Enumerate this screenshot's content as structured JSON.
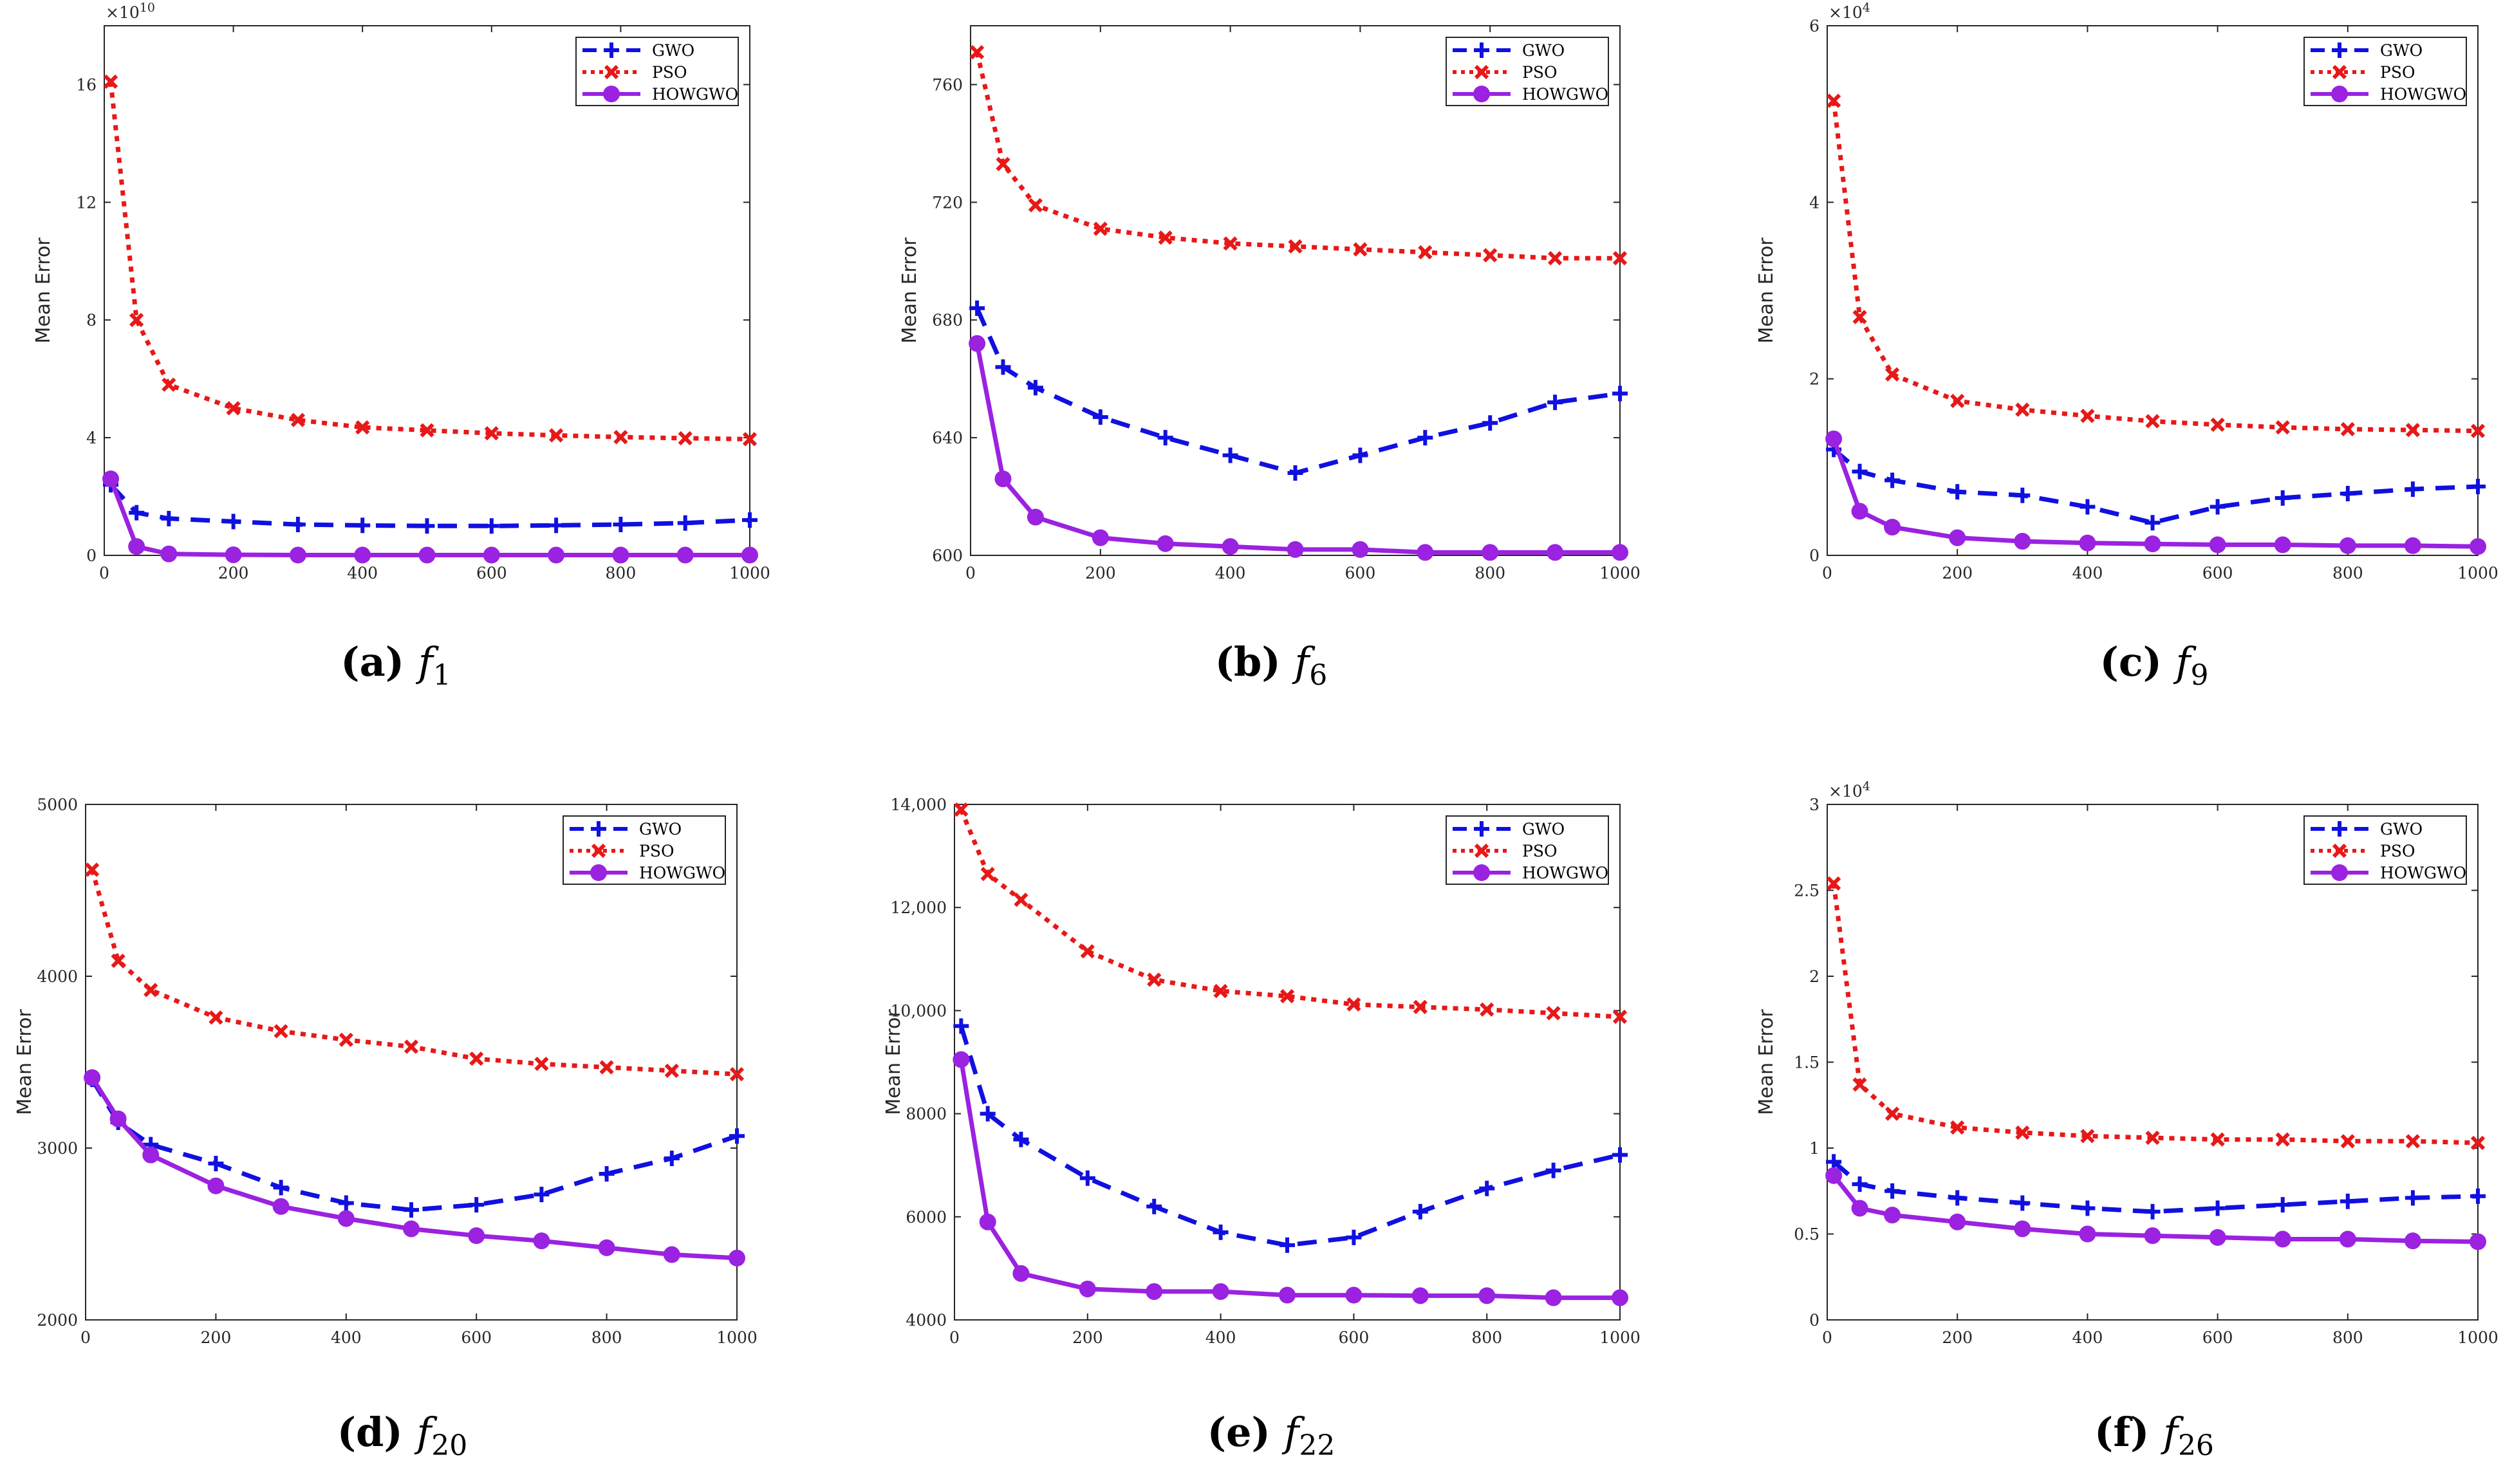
{
  "legend": [
    "GWO",
    "PSO",
    "HOWGWO"
  ],
  "series_colors": {
    "GWO": "#1010e0",
    "PSO": "#e81818",
    "HOWGWO": "#9a22e0"
  },
  "chart_data": [
    {
      "type": "line",
      "caption_letter": "(a)",
      "caption_fn": "f",
      "caption_sub": "1",
      "xlabel": "",
      "ylabel": "Mean Error",
      "xlim": [
        0,
        1000
      ],
      "ylim": [
        0,
        18
      ],
      "x_ticks": [
        0,
        200,
        400,
        600,
        800,
        1000
      ],
      "y_ticks": [
        0,
        4,
        8,
        12,
        16
      ],
      "y_tick_labels": [
        "0",
        "4",
        "8",
        "12",
        "16"
      ],
      "multiplier_base": "×10",
      "multiplier_exp": "10",
      "x": [
        10,
        50,
        100,
        200,
        300,
        400,
        500,
        600,
        700,
        800,
        900,
        1000
      ],
      "series": [
        {
          "name": "GWO",
          "values": [
            2.4,
            1.45,
            1.25,
            1.15,
            1.05,
            1.02,
            1.0,
            1.0,
            1.02,
            1.05,
            1.1,
            1.2
          ]
        },
        {
          "name": "PSO",
          "values": [
            16.1,
            8.0,
            5.8,
            5.0,
            4.6,
            4.35,
            4.25,
            4.15,
            4.08,
            4.02,
            3.98,
            3.95
          ]
        },
        {
          "name": "HOWGWO",
          "values": [
            2.6,
            0.3,
            0.05,
            0.02,
            0.01,
            0.01,
            0.01,
            0.01,
            0.01,
            0.01,
            0.01,
            0.01
          ]
        }
      ]
    },
    {
      "type": "line",
      "caption_letter": "(b)",
      "caption_fn": "f",
      "caption_sub": "6",
      "xlabel": "",
      "ylabel": "Mean Error",
      "xlim": [
        0,
        1000
      ],
      "ylim": [
        600,
        780
      ],
      "x_ticks": [
        0,
        200,
        400,
        600,
        800,
        1000
      ],
      "y_ticks": [
        600,
        640,
        680,
        720,
        760
      ],
      "y_tick_labels": [
        "600",
        "640",
        "680",
        "720",
        "760"
      ],
      "multiplier_base": "",
      "multiplier_exp": "",
      "x": [
        10,
        50,
        100,
        200,
        300,
        400,
        500,
        600,
        700,
        800,
        900,
        1000
      ],
      "series": [
        {
          "name": "GWO",
          "values": [
            684,
            664,
            657,
            647,
            640,
            634,
            628,
            634,
            640,
            645,
            652,
            655
          ]
        },
        {
          "name": "PSO",
          "values": [
            771,
            733,
            719,
            711,
            708,
            706,
            705,
            704,
            703,
            702,
            701,
            701
          ]
        },
        {
          "name": "HOWGWO",
          "values": [
            672,
            626,
            613,
            606,
            604,
            603,
            602,
            602,
            601,
            601,
            601,
            601
          ]
        }
      ]
    },
    {
      "type": "line",
      "caption_letter": "(c)",
      "caption_fn": "f",
      "caption_sub": "9",
      "xlabel": "",
      "ylabel": "Mean Error",
      "xlim": [
        0,
        1000
      ],
      "ylim": [
        0,
        6
      ],
      "x_ticks": [
        0,
        200,
        400,
        600,
        800,
        1000
      ],
      "y_ticks": [
        0,
        2,
        4,
        6
      ],
      "y_tick_labels": [
        "0",
        "2",
        "4",
        "6"
      ],
      "multiplier_base": "×10",
      "multiplier_exp": "4",
      "x": [
        10,
        50,
        100,
        200,
        300,
        400,
        500,
        600,
        700,
        800,
        900,
        1000
      ],
      "series": [
        {
          "name": "GWO",
          "values": [
            1.2,
            0.95,
            0.85,
            0.72,
            0.68,
            0.55,
            0.37,
            0.55,
            0.65,
            0.7,
            0.75,
            0.78
          ]
        },
        {
          "name": "PSO",
          "values": [
            5.15,
            2.7,
            2.05,
            1.75,
            1.65,
            1.58,
            1.52,
            1.48,
            1.45,
            1.43,
            1.42,
            1.41
          ]
        },
        {
          "name": "HOWGWO",
          "values": [
            1.32,
            0.5,
            0.32,
            0.2,
            0.16,
            0.14,
            0.13,
            0.12,
            0.12,
            0.11,
            0.11,
            0.1
          ]
        }
      ]
    },
    {
      "type": "line",
      "caption_letter": "(d)",
      "caption_fn": "f",
      "caption_sub": "20",
      "xlabel": "",
      "ylabel": "Mean Error",
      "xlim": [
        0,
        1000
      ],
      "ylim": [
        2000,
        5000
      ],
      "x_ticks": [
        0,
        200,
        400,
        600,
        800,
        1000
      ],
      "y_ticks": [
        2000,
        3000,
        4000,
        5000
      ],
      "y_tick_labels": [
        "2000",
        "3000",
        "4000",
        "5000"
      ],
      "multiplier_base": "",
      "multiplier_exp": "",
      "x": [
        10,
        50,
        100,
        200,
        300,
        400,
        500,
        600,
        700,
        800,
        900,
        1000
      ],
      "series": [
        {
          "name": "GWO",
          "values": [
            3400,
            3150,
            3020,
            2910,
            2770,
            2680,
            2640,
            2670,
            2730,
            2850,
            2940,
            3070
          ]
        },
        {
          "name": "PSO",
          "values": [
            4620,
            4090,
            3920,
            3760,
            3680,
            3630,
            3590,
            3520,
            3490,
            3470,
            3450,
            3430
          ]
        },
        {
          "name": "HOWGWO",
          "values": [
            3410,
            3170,
            2960,
            2780,
            2660,
            2590,
            2530,
            2490,
            2460,
            2420,
            2380,
            2360
          ]
        }
      ]
    },
    {
      "type": "line",
      "caption_letter": "(e)",
      "caption_fn": "f",
      "caption_sub": "22",
      "xlabel": "",
      "ylabel": "Mean Error",
      "xlim": [
        0,
        1000
      ],
      "ylim": [
        4000,
        14000
      ],
      "x_ticks": [
        0,
        200,
        400,
        600,
        800,
        1000
      ],
      "y_ticks": [
        4000,
        6000,
        8000,
        10000,
        12000,
        14000
      ],
      "y_tick_labels": [
        "4000",
        "6000",
        "8000",
        "10,000",
        "12,000",
        "14,000"
      ],
      "multiplier_base": "",
      "multiplier_exp": "",
      "x": [
        10,
        50,
        100,
        200,
        300,
        400,
        500,
        600,
        700,
        800,
        900,
        1000
      ],
      "series": [
        {
          "name": "GWO",
          "values": [
            9700,
            8000,
            7500,
            6750,
            6200,
            5700,
            5450,
            5600,
            6100,
            6550,
            6900,
            7200
          ]
        },
        {
          "name": "PSO",
          "values": [
            13900,
            12650,
            12150,
            11150,
            10600,
            10380,
            10280,
            10120,
            10070,
            10020,
            9950,
            9880
          ]
        },
        {
          "name": "HOWGWO",
          "values": [
            9050,
            5900,
            4900,
            4600,
            4550,
            4550,
            4480,
            4480,
            4470,
            4470,
            4430,
            4430
          ]
        }
      ]
    },
    {
      "type": "line",
      "caption_letter": "(f)",
      "caption_fn": "f",
      "caption_sub": "26",
      "xlabel": "",
      "ylabel": "Mean Error",
      "xlim": [
        0,
        1000
      ],
      "ylim": [
        0,
        3
      ],
      "x_ticks": [
        0,
        200,
        400,
        600,
        800,
        1000
      ],
      "y_ticks": [
        0,
        0.5,
        1,
        1.5,
        2,
        2.5,
        3
      ],
      "y_tick_labels": [
        "0",
        "0.5",
        "1",
        "1.5",
        "2",
        "2.5",
        "3"
      ],
      "multiplier_base": "×10",
      "multiplier_exp": "4",
      "x": [
        10,
        50,
        100,
        200,
        300,
        400,
        500,
        600,
        700,
        800,
        900,
        1000
      ],
      "series": [
        {
          "name": "GWO",
          "values": [
            0.92,
            0.79,
            0.75,
            0.71,
            0.68,
            0.65,
            0.63,
            0.65,
            0.67,
            0.69,
            0.71,
            0.72
          ]
        },
        {
          "name": "PSO",
          "values": [
            2.54,
            1.37,
            1.2,
            1.12,
            1.09,
            1.07,
            1.06,
            1.05,
            1.05,
            1.04,
            1.04,
            1.03
          ]
        },
        {
          "name": "HOWGWO",
          "values": [
            0.84,
            0.65,
            0.61,
            0.57,
            0.53,
            0.5,
            0.49,
            0.48,
            0.47,
            0.47,
            0.46,
            0.455
          ]
        }
      ]
    }
  ]
}
